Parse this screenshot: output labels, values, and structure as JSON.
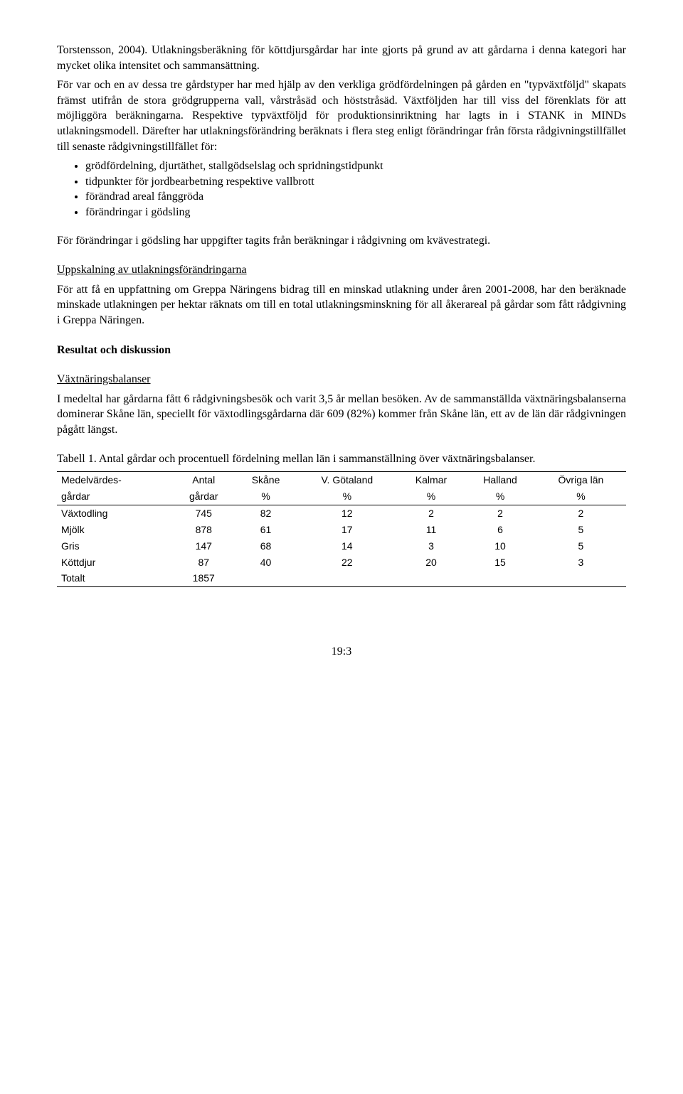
{
  "p1": "Torstensson, 2004). Utlakningsberäkning för köttdjursgårdar har inte gjorts på grund av att gårdarna i denna kategori har mycket olika intensitet och sammansättning.",
  "p2": "För var och en av dessa tre gårdstyper har med hjälp av den verkliga grödfördelningen på gården en \"typväxtföljd\" skapats främst utifrån de stora grödgrupperna vall, vårstråsäd och höststråsäd. Växtföljden har till viss del förenklats för att möjliggöra beräkningarna. Respektive typväxtföljd för produktionsinriktning har lagts in i STANK in MINDs utlakningsmodell. Därefter har utlakningsförändring beräknats i flera steg enligt förändringar från första rådgivningstillfället till senaste rådgivningstillfället för:",
  "bullets": [
    "grödfördelning, djurtäthet, stallgödselslag och spridningstidpunkt",
    "tidpunkter för jordbearbetning respektive vallbrott",
    "förändrad areal fånggröda",
    "förändringar i gödsling"
  ],
  "p3": "För förändringar i gödsling har uppgifter tagits från beräkningar i rådgivning om kvävestrategi.",
  "subhead1": "Uppskalning av utlakningsförändringarna",
  "p4": "För att få en uppfattning om Greppa Näringens bidrag till en minskad utlakning under åren 2001-2008, har den beräknade minskade utlakningen per hektar räknats om till en total utlakningsminskning för all åkerareal på gårdar som fått rådgivning i Greppa Näringen.",
  "heading2": "Resultat och diskussion",
  "subhead2": "Växtnäringsbalanser",
  "p5": "I medeltal har gårdarna fått 6 rådgivningsbesök och varit 3,5 år mellan besöken. Av de sammanställda växtnäringsbalanserna dominerar Skåne län, speciellt för växtodlingsgårdarna där 609 (82%) kommer från Skåne län, ett av de län där rådgivningen pågått längst.",
  "table_caption": "Tabell 1. Antal gårdar  och procentuell fördelning mellan län i sammanställning över växtnäringsbalanser.",
  "table": {
    "header_row1": [
      "Medelvärdes-",
      "Antal",
      "Skåne",
      "V. Götaland",
      "Kalmar",
      "Halland",
      "Övriga län"
    ],
    "header_row2": [
      "gårdar",
      "gårdar",
      "%",
      "%",
      "%",
      "%",
      "%"
    ],
    "rows": [
      [
        "Växtodling",
        "745",
        "82",
        "12",
        "2",
        "2",
        "2"
      ],
      [
        "Mjölk",
        "878",
        "61",
        "17",
        "11",
        "6",
        "5"
      ],
      [
        "Gris",
        "147",
        "68",
        "14",
        "3",
        "10",
        "5"
      ],
      [
        "Köttdjur",
        "87",
        "40",
        "22",
        "20",
        "15",
        "3"
      ],
      [
        "Totalt",
        "1857",
        "",
        "",
        "",
        "",
        ""
      ]
    ]
  },
  "page_number": "19:3"
}
